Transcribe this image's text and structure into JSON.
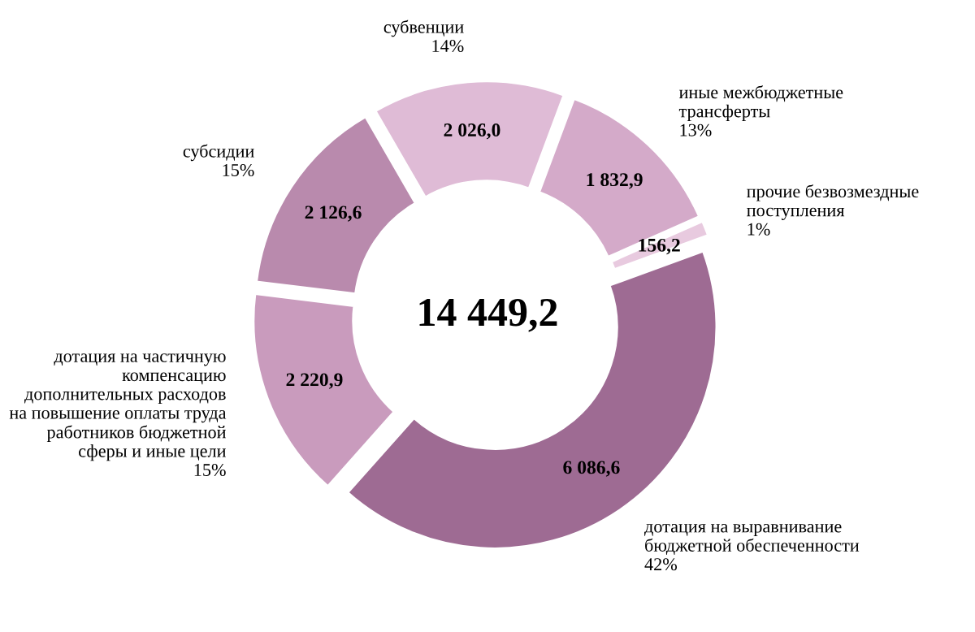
{
  "chart_data": {
    "type": "donut",
    "categories": [
      "дотация на выравнивание\nбюджетной обеспеченности\n42%",
      "дотация на частичную\nкомпенсацию\nдополнительных расходов\nна повышение оплаты труда\nработников бюджетной\nсферы и иные цели\n15%",
      "субсидии\n15%",
      "субвенции\n14%",
      "иные межбюджетные\nтрансферты\n13%",
      "прочие безвозмездные\nпоступления\n1%"
    ],
    "values": [
      6086.6,
      2220.9,
      2126.6,
      2026.0,
      1832.9,
      156.2
    ],
    "value_labels": [
      "6 086,6",
      "2 220,9",
      "2 126,6",
      "2 026,0",
      "1 832,9",
      "156,2"
    ],
    "colors": [
      "#9e6b93",
      "#c99bbd",
      "#b98aad",
      "#dfbbd6",
      "#d4aac9",
      "#e8cadf"
    ],
    "annotations": [
      "14 449,2"
    ],
    "legend": false
  }
}
